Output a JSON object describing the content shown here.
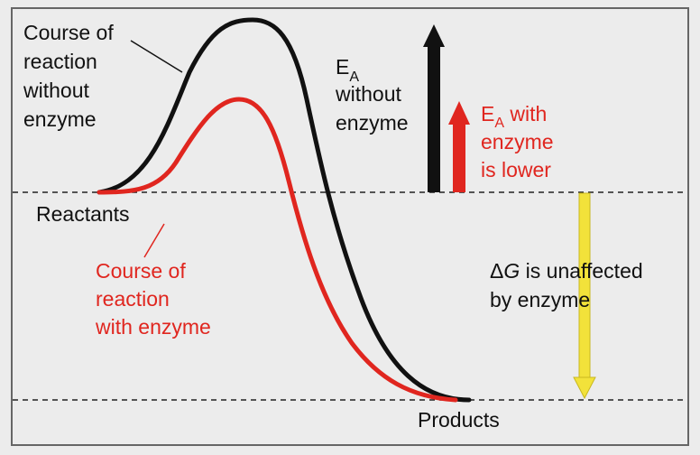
{
  "labels": {
    "uncatalyzed": [
      "Course of",
      "reaction",
      "without",
      "enzyme"
    ],
    "catalyzed": [
      "Course of",
      "reaction",
      "with enzyme"
    ],
    "reactants": "Reactants",
    "products": "Products",
    "ea_without": {
      "symbol": "E",
      "subscript": "A",
      "lines": [
        "without",
        "enzyme"
      ]
    },
    "ea_with": {
      "symbol": "E",
      "subscript": "A",
      "suffix": " with",
      "lines": [
        "enzyme",
        "is lower"
      ]
    },
    "delta_g": {
      "symbol": "Δ",
      "variable": "G",
      "suffix": " is unaffected",
      "line2": "by enzyme"
    }
  },
  "colors": {
    "uncatalyzed": "#111111",
    "catalyzed": "#e0261f",
    "delta_g_arrow": "#f2e23a",
    "background": "#ececec"
  }
}
